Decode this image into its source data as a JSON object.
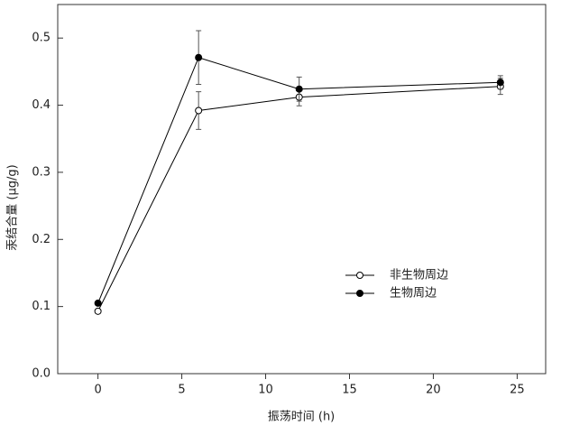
{
  "chart_data": {
    "type": "line",
    "x_label": "振荡时间 (h)",
    "y_label": "汞结合量 (μg/g)",
    "x": [
      0,
      6,
      12,
      24
    ],
    "series": [
      {
        "name": "非生物周边",
        "color": "#000000",
        "marker": "open",
        "values": [
          0.093,
          0.392,
          0.412,
          0.428
        ],
        "errors": [
          0.003,
          0.028,
          0.013,
          0.012
        ]
      },
      {
        "name": "生物周边",
        "color": "#000000",
        "marker": "filled",
        "values": [
          0.105,
          0.471,
          0.424,
          0.434
        ],
        "errors": [
          0.003,
          0.04,
          0.018,
          0.01
        ]
      }
    ],
    "xlim": [
      -2.4,
      26.7
    ],
    "xticks": [
      0,
      5,
      10,
      15,
      20,
      25
    ],
    "ylim": [
      0,
      0.55
    ],
    "yticks": [
      {
        "value": 0,
        "label": "0.0"
      },
      0.1,
      0.2,
      0.3,
      0.4,
      0.5
    ],
    "legend": "center-right"
  }
}
